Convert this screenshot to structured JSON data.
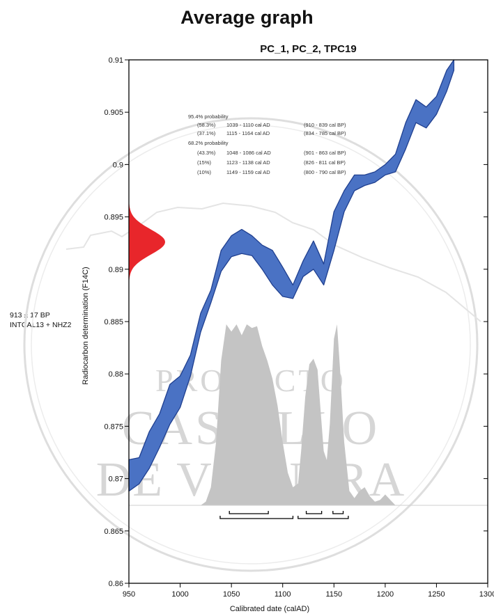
{
  "title": "Average graph",
  "subtitle": "PC_1, PC_2, TPC19",
  "sample": {
    "age": "913 ± 17 BP",
    "curve": "INTCAL13 + NHZ2"
  },
  "watermark": [
    "PROYECTO",
    "CASTILLO",
    "DE VIGUERA"
  ],
  "probability_text": {
    "group95_header": "95.4% probability",
    "group95": [
      {
        "pct": "(58.3%)",
        "cal_ad": "1039 - 1110 cal AD",
        "cal_bp": "(910 - 839 cal BP)"
      },
      {
        "pct": "(37.1%)",
        "cal_ad": "1115 - 1164 cal AD",
        "cal_bp": "(834 - 785 cal BP)"
      }
    ],
    "group68_header": "68.2% probability",
    "group68": [
      {
        "pct": "(43.3%)",
        "cal_ad": "1048 - 1086 cal AD",
        "cal_bp": "(901 - 863 cal BP)"
      },
      {
        "pct": "(15%)",
        "cal_ad": "1123 - 1138 cal AD",
        "cal_bp": "(826 - 811 cal BP)"
      },
      {
        "pct": "(10%)",
        "cal_ad": "1149 - 1159 cal AD",
        "cal_bp": "(800 - 790 cal BP)"
      }
    ]
  },
  "chart_data": {
    "type": "area",
    "xlabel": "Calibrated date (calAD)",
    "ylabel": "Radiocarbon determination (F14C)",
    "xlim": [
      950,
      1300
    ],
    "ylim": [
      0.86,
      0.91
    ],
    "x_ticks": [
      950,
      1000,
      1050,
      1100,
      1150,
      1200,
      1250,
      1300
    ],
    "y_ticks": [
      0.86,
      0.865,
      0.87,
      0.875,
      0.88,
      0.885,
      0.89,
      0.895,
      0.9,
      0.905,
      0.91
    ],
    "y_tick_labels": [
      "0.86",
      "0.865",
      "0.87",
      "0.875",
      "0.88",
      "0.885",
      "0.89",
      "0.895",
      "0.9",
      "0.905",
      "0.91"
    ],
    "grid": false,
    "calibration_band": {
      "color": "#4a72c4",
      "points": [
        {
          "x": 950,
          "lo": 0.8688,
          "hi": 0.8718
        },
        {
          "x": 960,
          "lo": 0.8695,
          "hi": 0.872
        },
        {
          "x": 970,
          "lo": 0.871,
          "hi": 0.8745
        },
        {
          "x": 980,
          "lo": 0.873,
          "hi": 0.8762
        },
        {
          "x": 990,
          "lo": 0.8752,
          "hi": 0.879
        },
        {
          "x": 1000,
          "lo": 0.8768,
          "hi": 0.8798
        },
        {
          "x": 1010,
          "lo": 0.8798,
          "hi": 0.8818
        },
        {
          "x": 1020,
          "lo": 0.884,
          "hi": 0.8858
        },
        {
          "x": 1030,
          "lo": 0.8868,
          "hi": 0.888
        },
        {
          "x": 1040,
          "lo": 0.8898,
          "hi": 0.8918
        },
        {
          "x": 1050,
          "lo": 0.8912,
          "hi": 0.8932
        },
        {
          "x": 1060,
          "lo": 0.8915,
          "hi": 0.8938
        },
        {
          "x": 1070,
          "lo": 0.8913,
          "hi": 0.8932
        },
        {
          "x": 1080,
          "lo": 0.89,
          "hi": 0.8923
        },
        {
          "x": 1090,
          "lo": 0.8885,
          "hi": 0.8918
        },
        {
          "x": 1100,
          "lo": 0.8874,
          "hi": 0.8902
        },
        {
          "x": 1110,
          "lo": 0.8872,
          "hi": 0.8885
        },
        {
          "x": 1120,
          "lo": 0.8893,
          "hi": 0.8908
        },
        {
          "x": 1130,
          "lo": 0.89,
          "hi": 0.8927
        },
        {
          "x": 1140,
          "lo": 0.8885,
          "hi": 0.8905
        },
        {
          "x": 1150,
          "lo": 0.8918,
          "hi": 0.8955
        },
        {
          "x": 1160,
          "lo": 0.8955,
          "hi": 0.8975
        },
        {
          "x": 1170,
          "lo": 0.8975,
          "hi": 0.899
        },
        {
          "x": 1180,
          "lo": 0.898,
          "hi": 0.899
        },
        {
          "x": 1190,
          "lo": 0.8983,
          "hi": 0.8993
        },
        {
          "x": 1200,
          "lo": 0.899,
          "hi": 0.9
        },
        {
          "x": 1210,
          "lo": 0.8993,
          "hi": 0.901
        },
        {
          "x": 1220,
          "lo": 0.9015,
          "hi": 0.904
        },
        {
          "x": 1230,
          "lo": 0.904,
          "hi": 0.9062
        },
        {
          "x": 1240,
          "lo": 0.9035,
          "hi": 0.9055
        },
        {
          "x": 1250,
          "lo": 0.9048,
          "hi": 0.9065
        },
        {
          "x": 1260,
          "lo": 0.907,
          "hi": 0.909
        },
        {
          "x": 1267,
          "lo": 0.909,
          "hi": 0.91
        }
      ]
    },
    "measurement_distribution": {
      "color": "#e8262b",
      "mean_f14c": 0.8926,
      "sd_f14c": 0.0012
    },
    "calibrated_distribution": {
      "color": "#c4c4c4",
      "points": [
        [
          1020,
          0.0
        ],
        [
          1025,
          0.02
        ],
        [
          1030,
          0.1
        ],
        [
          1035,
          0.35
        ],
        [
          1040,
          0.8
        ],
        [
          1045,
          1.0
        ],
        [
          1050,
          0.96
        ],
        [
          1055,
          1.0
        ],
        [
          1060,
          0.94
        ],
        [
          1065,
          1.0
        ],
        [
          1070,
          0.98
        ],
        [
          1075,
          0.99
        ],
        [
          1080,
          0.88
        ],
        [
          1085,
          0.8
        ],
        [
          1090,
          0.7
        ],
        [
          1095,
          0.55
        ],
        [
          1100,
          0.35
        ],
        [
          1105,
          0.18
        ],
        [
          1110,
          0.1
        ],
        [
          1115,
          0.12
        ],
        [
          1118,
          0.3
        ],
        [
          1122,
          0.6
        ],
        [
          1126,
          0.78
        ],
        [
          1130,
          0.81
        ],
        [
          1134,
          0.75
        ],
        [
          1137,
          0.52
        ],
        [
          1140,
          0.3
        ],
        [
          1143,
          0.25
        ],
        [
          1146,
          0.45
        ],
        [
          1150,
          0.92
        ],
        [
          1153,
          1.0
        ],
        [
          1156,
          0.75
        ],
        [
          1160,
          0.35
        ],
        [
          1165,
          0.08
        ],
        [
          1170,
          0.04
        ],
        [
          1175,
          0.08
        ],
        [
          1180,
          0.1
        ],
        [
          1185,
          0.05
        ],
        [
          1190,
          0.02
        ],
        [
          1195,
          0.03
        ],
        [
          1200,
          0.06
        ],
        [
          1205,
          0.03
        ],
        [
          1210,
          0.0
        ]
      ]
    },
    "ranges_68": [
      [
        1048,
        1086
      ],
      [
        1123,
        1138
      ],
      [
        1149,
        1159
      ]
    ],
    "ranges_95": [
      [
        1039,
        1110
      ],
      [
        1115,
        1164
      ]
    ]
  }
}
